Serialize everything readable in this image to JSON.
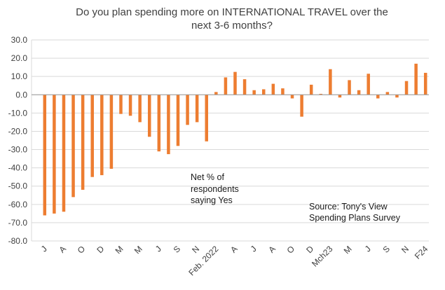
{
  "chart_data": {
    "type": "bar",
    "title_lines": [
      "Do you plan spending more on INTERNATIONAL TRAVEL over the",
      "next 3-6 months?"
    ],
    "ylim": [
      -80,
      30
    ],
    "y_ticks": [
      "30.0",
      "20.0",
      "10.0",
      "0.0",
      "-10.0",
      "-20.0",
      "-30.0",
      "-40.0",
      "-50.0",
      "-60.0",
      "-70.0",
      "-80.0"
    ],
    "grid": true,
    "bar_color": "#ED7D31",
    "series": [
      {
        "name": "Net % of respondents saying Yes",
        "values": [
          -66,
          -65,
          -64,
          -56,
          -52,
          -45,
          -44,
          -40.5,
          -10.5,
          -11.5,
          -15,
          -23,
          -31,
          -32.5,
          -28,
          -16.5,
          -15,
          -25.5,
          1.5,
          9.5,
          12.5,
          8.5,
          2.5,
          3,
          6,
          3.5,
          -2,
          -12,
          5.5,
          0.5,
          14,
          -1.5,
          8,
          2.5,
          11.5,
          -2,
          1.5,
          -1.5,
          7.5,
          17,
          12
        ]
      }
    ],
    "category_labels": [
      {
        "index": 0,
        "text": "J"
      },
      {
        "index": 2,
        "text": "A"
      },
      {
        "index": 4,
        "text": "O"
      },
      {
        "index": 6,
        "text": "D"
      },
      {
        "index": 8,
        "text": "M"
      },
      {
        "index": 10,
        "text": "M"
      },
      {
        "index": 12,
        "text": "J"
      },
      {
        "index": 14,
        "text": "S"
      },
      {
        "index": 16,
        "text": "N"
      },
      {
        "index": 18,
        "text": "Feb. 2022"
      },
      {
        "index": 20,
        "text": "A"
      },
      {
        "index": 22,
        "text": "J"
      },
      {
        "index": 24,
        "text": "A"
      },
      {
        "index": 26,
        "text": "O"
      },
      {
        "index": 28,
        "text": "D"
      },
      {
        "index": 30,
        "text": "Mch23"
      },
      {
        "index": 32,
        "text": "M"
      },
      {
        "index": 34,
        "text": "J"
      },
      {
        "index": 36,
        "text": "S"
      },
      {
        "index": 38,
        "text": "N"
      },
      {
        "index": 40,
        "text": "F24"
      }
    ],
    "annotations": {
      "series_note": [
        "Net % of",
        "respondents",
        "saying Yes"
      ],
      "source": [
        "Source: Tony's View",
        "Spending Plans Survey"
      ]
    }
  }
}
